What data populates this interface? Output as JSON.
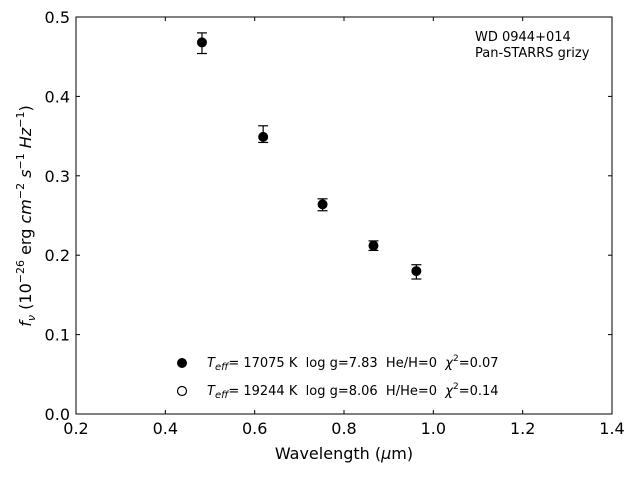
{
  "chart_data": {
    "type": "scatter",
    "annotations": [
      "WD 0944+014",
      "Pan-STARRS grizy"
    ],
    "xlabel": {
      "main": "Wavelength (",
      "symbol": "μ",
      "after": "m)"
    },
    "ylabel": {
      "f": "f",
      "sub": "ν",
      "open": " (10",
      "exp": "−26",
      "mid": " erg ",
      "cm": "cm",
      "cmexp": "−2",
      "s": " s",
      "sexp": "−1",
      "hz": " Hz",
      "hzexp": "−1",
      "close": ")"
    },
    "xlim": [
      0.2,
      1.4
    ],
    "ylim": [
      0.0,
      0.5
    ],
    "xticks": [
      0.2,
      0.4,
      0.6,
      0.8,
      1.0,
      1.2,
      1.4
    ],
    "xtick_labels": [
      "0.2",
      "0.4",
      "0.6",
      "0.8",
      "1.0",
      "1.2",
      "1.4"
    ],
    "yticks": [
      0.0,
      0.1,
      0.2,
      0.3,
      0.4,
      0.5
    ],
    "ytick_labels": [
      "0.0",
      "0.1",
      "0.2",
      "0.3",
      "0.4",
      "0.5"
    ],
    "grid": false,
    "legend_position": "lower-center",
    "series": [
      {
        "marker": "filled-circle",
        "x": [
          0.482,
          0.619,
          0.752,
          0.866,
          0.962
        ],
        "y": [
          0.468,
          0.349,
          0.264,
          0.212,
          0.18
        ],
        "err_lo": [
          0.014,
          0.007,
          0.008,
          0.006,
          0.01
        ],
        "err_hi": [
          0.012,
          0.014,
          0.007,
          0.006,
          0.008
        ]
      }
    ],
    "legend": [
      {
        "marker": "filled-circle",
        "teff": "T",
        "teff_sub": "eff",
        "rest": "= 17075 K  log g=7.83  He/H=0  ",
        "chi": "χ",
        "chi_exp": "2",
        "chi_val": "=0.07"
      },
      {
        "marker": "open-circle",
        "teff": "T",
        "teff_sub": "eff",
        "rest": "= 19244 K  log g=8.06  H/He=0  ",
        "chi": "χ",
        "chi_exp": "2",
        "chi_val": "=0.14"
      }
    ]
  }
}
